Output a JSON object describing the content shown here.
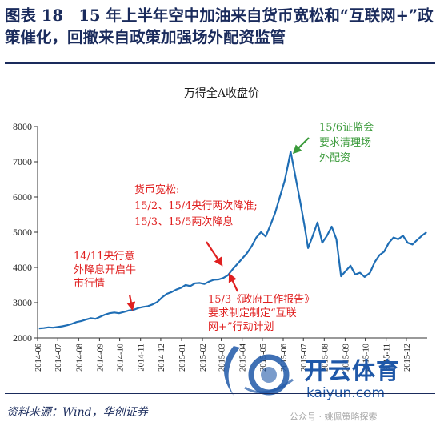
{
  "figure": {
    "title": "图表 18　15 年上半年空中加油来自货币宽松和“互联网+”政策催化，回撤来自政策加强场外配资监管",
    "source": "资料来源：Wind，华创证券"
  },
  "watermark": {
    "brand": "开云体育",
    "url": "kaiyun.com",
    "wechat": "公众号 · 姚佩策略探索"
  },
  "chart_data": {
    "type": "line",
    "title": "万得全A收盘价",
    "xlabel": "",
    "ylabel": "",
    "ylim": [
      2000,
      8000
    ],
    "yticks": [
      2000,
      3000,
      4000,
      5000,
      6000,
      7000,
      8000
    ],
    "x_tick_labels": [
      "2014-06",
      "2014-07",
      "2014-08",
      "2014-09",
      "2014-10",
      "2014-11",
      "2014-12",
      "2015-01",
      "2015-02",
      "2015-03",
      "2015-04",
      "2015-05",
      "2015-06",
      "2015-07",
      "2015-08",
      "2015-09",
      "2015-10",
      "2015-11",
      "2015-12"
    ],
    "grid": false,
    "color": "#1f6eb5",
    "series": [
      {
        "values": [
          [
            "2014-06-03",
            2270
          ],
          [
            "2014-06-10",
            2280
          ],
          [
            "2014-06-17",
            2300
          ],
          [
            "2014-06-24",
            2290
          ],
          [
            "2014-07-01",
            2310
          ],
          [
            "2014-07-08",
            2330
          ],
          [
            "2014-07-15",
            2360
          ],
          [
            "2014-07-22",
            2400
          ],
          [
            "2014-07-29",
            2450
          ],
          [
            "2014-08-05",
            2480
          ],
          [
            "2014-08-12",
            2520
          ],
          [
            "2014-08-19",
            2560
          ],
          [
            "2014-08-26",
            2540
          ],
          [
            "2014-09-02",
            2600
          ],
          [
            "2014-09-09",
            2660
          ],
          [
            "2014-09-16",
            2700
          ],
          [
            "2014-09-23",
            2720
          ],
          [
            "2014-09-30",
            2700
          ],
          [
            "2014-10-08",
            2740
          ],
          [
            "2014-10-15",
            2780
          ],
          [
            "2014-10-22",
            2800
          ],
          [
            "2014-10-29",
            2850
          ],
          [
            "2014-11-05",
            2880
          ],
          [
            "2014-11-12",
            2900
          ],
          [
            "2014-11-19",
            2950
          ],
          [
            "2014-11-26",
            3020
          ],
          [
            "2014-12-03",
            3150
          ],
          [
            "2014-12-10",
            3250
          ],
          [
            "2014-12-17",
            3300
          ],
          [
            "2014-12-24",
            3370
          ],
          [
            "2014-12-31",
            3420
          ],
          [
            "2015-01-07",
            3500
          ],
          [
            "2015-01-14",
            3470
          ],
          [
            "2015-01-21",
            3550
          ],
          [
            "2015-01-28",
            3560
          ],
          [
            "2015-02-04",
            3530
          ],
          [
            "2015-02-11",
            3600
          ],
          [
            "2015-02-18",
            3650
          ],
          [
            "2015-02-25",
            3660
          ],
          [
            "2015-03-04",
            3700
          ],
          [
            "2015-03-11",
            3780
          ],
          [
            "2015-03-18",
            3950
          ],
          [
            "2015-03-25",
            4100
          ],
          [
            "2015-04-01",
            4250
          ],
          [
            "2015-04-08",
            4400
          ],
          [
            "2015-04-15",
            4600
          ],
          [
            "2015-04-22",
            4850
          ],
          [
            "2015-04-29",
            5000
          ],
          [
            "2015-05-06",
            4880
          ],
          [
            "2015-05-13",
            5200
          ],
          [
            "2015-05-20",
            5550
          ],
          [
            "2015-05-27",
            6000
          ],
          [
            "2015-06-03",
            6450
          ],
          [
            "2015-06-08",
            6900
          ],
          [
            "2015-06-12",
            7290
          ],
          [
            "2015-06-19",
            6600
          ],
          [
            "2015-06-26",
            5900
          ],
          [
            "2015-07-03",
            5150
          ],
          [
            "2015-07-08",
            4550
          ],
          [
            "2015-07-15",
            4900
          ],
          [
            "2015-07-22",
            5280
          ],
          [
            "2015-07-29",
            4700
          ],
          [
            "2015-08-05",
            4900
          ],
          [
            "2015-08-12",
            5160
          ],
          [
            "2015-08-19",
            4800
          ],
          [
            "2015-08-26",
            3750
          ],
          [
            "2015-09-02",
            3900
          ],
          [
            "2015-09-09",
            4050
          ],
          [
            "2015-09-16",
            3800
          ],
          [
            "2015-09-23",
            3850
          ],
          [
            "2015-09-30",
            3730
          ],
          [
            "2015-10-08",
            3850
          ],
          [
            "2015-10-15",
            4150
          ],
          [
            "2015-10-22",
            4350
          ],
          [
            "2015-10-29",
            4450
          ],
          [
            "2015-11-05",
            4700
          ],
          [
            "2015-11-12",
            4850
          ],
          [
            "2015-11-19",
            4800
          ],
          [
            "2015-11-26",
            4900
          ],
          [
            "2015-12-03",
            4700
          ],
          [
            "2015-12-10",
            4650
          ],
          [
            "2015-12-17",
            4780
          ],
          [
            "2015-12-24",
            4900
          ],
          [
            "2015-12-31",
            5000
          ]
        ]
      }
    ],
    "annotations": [
      {
        "color": "#e02020",
        "lines": [
          "14/11央行意",
          "外降息开启牛",
          "市行情"
        ],
        "points_to": "2014-11-21"
      },
      {
        "color": "#e02020",
        "lines": [
          "货币宽松:",
          "15/2、15/4央行两次降准;",
          "15/3、15/5两次降息"
        ],
        "points_to": "2015-03-22"
      },
      {
        "color": "#e02020",
        "lines": [
          "15/3《政府工作报告》",
          "要求制定制定“互联",
          "网+”行动计划"
        ],
        "points_to": "2015-03-10"
      },
      {
        "color": "#3a9a3a",
        "lines": [
          "15/6证监会",
          "要求清理场",
          "外配资"
        ],
        "points_to": "2015-06-12"
      }
    ]
  }
}
